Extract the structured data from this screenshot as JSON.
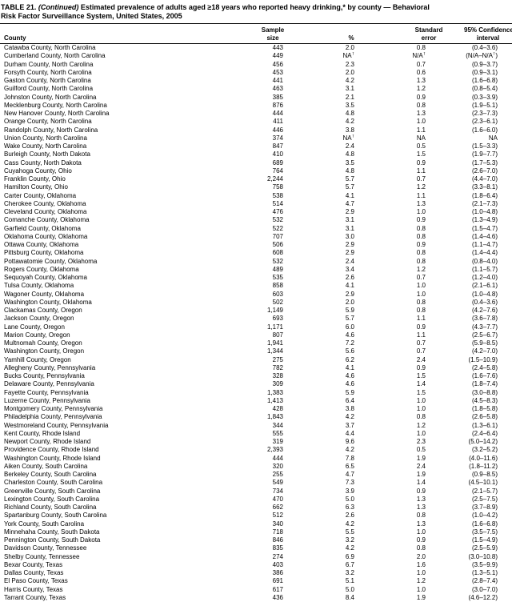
{
  "title": {
    "bold_prefix": "TABLE 21. ",
    "continued": "(Continued)",
    "line1_rest": " Estimated prevalence of adults aged ≥18 years who reported heavy drinking,* by county — Behavioral",
    "line2": "Risk Factor Surveillance System, United States, 2005"
  },
  "table": {
    "headers": [
      {
        "name": "county",
        "lines": [
          "County"
        ]
      },
      {
        "name": "sample-size",
        "lines": [
          "Sample",
          "size"
        ]
      },
      {
        "name": "percent",
        "lines": [
          "%"
        ]
      },
      {
        "name": "standard-error",
        "lines": [
          "Standard",
          "error"
        ]
      },
      {
        "name": "confidence-interval",
        "lines": [
          "95% Confidence",
          "interval"
        ]
      }
    ],
    "rows": [
      [
        "Catawba County, North Carolina",
        "443",
        "2.0",
        "0.8",
        "(0.4–3.6)"
      ],
      [
        "Cumberland County, North Carolina",
        "449",
        "NA†",
        "N/A†",
        "(N/A–N/A†)"
      ],
      [
        "Durham County, North Carolina",
        "456",
        "2.3",
        "0.7",
        "(0.9–3.7)"
      ],
      [
        "Forsyth County, North Carolina",
        "453",
        "2.0",
        "0.6",
        "(0.9–3.1)"
      ],
      [
        "Gaston County, North Carolina",
        "441",
        "4.2",
        "1.3",
        "(1.6–6.8)"
      ],
      [
        "Guilford County, North Carolina",
        "463",
        "3.1",
        "1.2",
        "(0.8–5.4)"
      ],
      [
        "Johnston County, North Carolina",
        "385",
        "2.1",
        "0.9",
        "(0.3–3.9)"
      ],
      [
        "Mecklenburg County, North Carolina",
        "876",
        "3.5",
        "0.8",
        "(1.9–5.1)"
      ],
      [
        "New Hanover County, North Carolina",
        "444",
        "4.8",
        "1.3",
        "(2.3–7.3)"
      ],
      [
        "Orange County, North Carolina",
        "411",
        "4.2",
        "1.0",
        "(2.3–6.1)"
      ],
      [
        "Randolph County, North Carolina",
        "446",
        "3.8",
        "1.1",
        "(1.6–6.0)"
      ],
      [
        "Union County, North Carolina",
        "374",
        "NA†",
        "NA",
        "NA"
      ],
      [
        "Wake County, North Carolina",
        "847",
        "2.4",
        "0.5",
        "(1.5–3.3)"
      ],
      [
        "Burleigh County, North Dakota",
        "410",
        "4.8",
        "1.5",
        "(1.9–7.7)"
      ],
      [
        "Cass County, North Dakota",
        "689",
        "3.5",
        "0.9",
        "(1.7–5.3)"
      ],
      [
        "Cuyahoga County, Ohio",
        "764",
        "4.8",
        "1.1",
        "(2.6–7.0)"
      ],
      [
        "Franklin County, Ohio",
        "2,244",
        "5.7",
        "0.7",
        "(4.4–7.0)"
      ],
      [
        "Hamilton County, Ohio",
        "758",
        "5.7",
        "1.2",
        "(3.3–8.1)"
      ],
      [
        "Carter County, Oklahoma",
        "538",
        "4.1",
        "1.1",
        "(1.8–6.4)"
      ],
      [
        "Cherokee County, Oklahoma",
        "514",
        "4.7",
        "1.3",
        "(2.1–7.3)"
      ],
      [
        "Cleveland County, Oklahoma",
        "476",
        "2.9",
        "1.0",
        "(1.0–4.8)"
      ],
      [
        "Comanche County, Oklahoma",
        "532",
        "3.1",
        "0.9",
        "(1.3–4.9)"
      ],
      [
        "Garfield County, Oklahoma",
        "522",
        "3.1",
        "0.8",
        "(1.5–4.7)"
      ],
      [
        "Oklahoma County, Oklahoma",
        "707",
        "3.0",
        "0.8",
        "(1.4–4.6)"
      ],
      [
        "Ottawa County, Oklahoma",
        "506",
        "2.9",
        "0.9",
        "(1.1–4.7)"
      ],
      [
        "Pittsburg County, Oklahoma",
        "608",
        "2.9",
        "0.8",
        "(1.4–4.4)"
      ],
      [
        "Pottawatomie County, Oklahoma",
        "532",
        "2.4",
        "0.8",
        "(0.8–4.0)"
      ],
      [
        "Rogers County, Oklahoma",
        "489",
        "3.4",
        "1.2",
        "(1.1–5.7)"
      ],
      [
        "Sequoyah County, Oklahoma",
        "535",
        "2.6",
        "0.7",
        "(1.2–4.0)"
      ],
      [
        "Tulsa County, Oklahoma",
        "858",
        "4.1",
        "1.0",
        "(2.1–6.1)"
      ],
      [
        "Wagoner County, Oklahoma",
        "603",
        "2.9",
        "1.0",
        "(1.0–4.8)"
      ],
      [
        "Washington County, Oklahoma",
        "502",
        "2.0",
        "0.8",
        "(0.4–3.6)"
      ],
      [
        "Clackamas County, Oregon",
        "1,149",
        "5.9",
        "0.8",
        "(4.2–7.6)"
      ],
      [
        "Jackson County, Oregon",
        "693",
        "5.7",
        "1.1",
        "(3.6–7.8)"
      ],
      [
        "Lane County, Oregon",
        "1,171",
        "6.0",
        "0.9",
        "(4.3–7.7)"
      ],
      [
        "Marion County, Oregon",
        "807",
        "4.6",
        "1.1",
        "(2.5–6.7)"
      ],
      [
        "Multnomah County, Oregon",
        "1,941",
        "7.2",
        "0.7",
        "(5.9–8.5)"
      ],
      [
        "Washington County, Oregon",
        "1,344",
        "5.6",
        "0.7",
        "(4.2–7.0)"
      ],
      [
        "Yamhill County, Oregon",
        "275",
        "6.2",
        "2.4",
        "(1.5–10.9)"
      ],
      [
        "Allegheny County, Pennsylvania",
        "782",
        "4.1",
        "0.9",
        "(2.4–5.8)"
      ],
      [
        "Bucks County, Pennsylvania",
        "328",
        "4.6",
        "1.5",
        "(1.6–7.6)"
      ],
      [
        "Delaware County, Pennsylvania",
        "309",
        "4.6",
        "1.4",
        "(1.8–7.4)"
      ],
      [
        "Fayette County, Pennsylvania",
        "1,383",
        "5.9",
        "1.5",
        "(3.0–8.8)"
      ],
      [
        "Luzerne County, Pennsylvania",
        "1,413",
        "6.4",
        "1.0",
        "(4.5–8.3)"
      ],
      [
        "Montgomery County, Pennsylvania",
        "428",
        "3.8",
        "1.0",
        "(1.8–5.8)"
      ],
      [
        "Philadelphia County, Pennsylvania",
        "1,843",
        "4.2",
        "0.8",
        "(2.6–5.8)"
      ],
      [
        "Westmoreland County, Pennsylvania",
        "344",
        "3.7",
        "1.2",
        "(1.3–6.1)"
      ],
      [
        "Kent County, Rhode Island",
        "555",
        "4.4",
        "1.0",
        "(2.4–6.4)"
      ],
      [
        "Newport County, Rhode Island",
        "319",
        "9.6",
        "2.3",
        "(5.0–14.2)"
      ],
      [
        "Providence County, Rhode Island",
        "2,393",
        "4.2",
        "0.5",
        "(3.2–5.2)"
      ],
      [
        "Washington County, Rhode Island",
        "444",
        "7.8",
        "1.9",
        "(4.0–11.6)"
      ],
      [
        "Aiken County, South Carolina",
        "320",
        "6.5",
        "2.4",
        "(1.8–11.2)"
      ],
      [
        "Berkeley County, South Carolina",
        "255",
        "4.7",
        "1.9",
        "(0.9–8.5)"
      ],
      [
        "Charleston County, South Carolina",
        "549",
        "7.3",
        "1.4",
        "(4.5–10.1)"
      ],
      [
        "Greenville County, South Carolina",
        "734",
        "3.9",
        "0.9",
        "(2.1–5.7)"
      ],
      [
        "Lexington County, South Carolina",
        "470",
        "5.0",
        "1.3",
        "(2.5–7.5)"
      ],
      [
        "Richland County, South Carolina",
        "662",
        "6.3",
        "1.3",
        "(3.7–8.9)"
      ],
      [
        "Spartanburg County, South Carolina",
        "512",
        "2.6",
        "0.8",
        "(1.0–4.2)"
      ],
      [
        "York County, South Carolina",
        "340",
        "4.2",
        "1.3",
        "(1.6–6.8)"
      ],
      [
        "Minnehaha County, South Dakota",
        "718",
        "5.5",
        "1.0",
        "(3.5–7.5)"
      ],
      [
        "Pennington County, South Dakota",
        "846",
        "3.2",
        "0.9",
        "(1.5–4.9)"
      ],
      [
        "Davidson County, Tennessee",
        "835",
        "4.2",
        "0.8",
        "(2.5–5.9)"
      ],
      [
        "Shelby County, Tennessee",
        "274",
        "6.9",
        "2.0",
        "(3.0–10.8)"
      ],
      [
        "Bexar County, Texas",
        "403",
        "6.7",
        "1.6",
        "(3.5–9.9)"
      ],
      [
        "Dallas County, Texas",
        "386",
        "3.2",
        "1.0",
        "(1.3–5.1)"
      ],
      [
        "El Paso County, Texas",
        "691",
        "5.1",
        "1.2",
        "(2.8–7.4)"
      ],
      [
        "Harris County, Texas",
        "617",
        "5.0",
        "1.0",
        "(3.0–7.0)"
      ],
      [
        "Tarrant County, Texas",
        "436",
        "8.4",
        "1.9",
        "(4.6–12.2)"
      ]
    ]
  }
}
